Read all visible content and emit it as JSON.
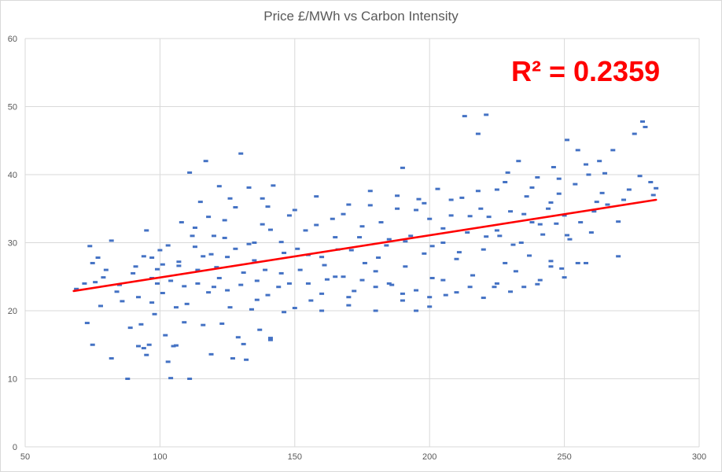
{
  "chart_data": {
    "type": "scatter",
    "title": "Price £/MWh vs Carbon Intensity",
    "xlabel": "",
    "ylabel": "",
    "xlim": [
      50,
      300
    ],
    "ylim": [
      0,
      60
    ],
    "x_ticks": [
      50,
      100,
      150,
      200,
      250,
      300
    ],
    "y_ticks": [
      0,
      10,
      20,
      30,
      40,
      50,
      60
    ],
    "grid": true,
    "legend": "none",
    "marker_color": "#4472c4",
    "trendline": {
      "type": "linear",
      "color": "#ff0000",
      "x": [
        68,
        284
      ],
      "y": [
        22.9,
        36.3
      ],
      "annotation": "R² = 0.2359",
      "r_squared": 0.2359
    },
    "series": [
      {
        "name": "Price vs Carbon Intensity",
        "points": [
          [
            69,
            23.2
          ],
          [
            72,
            24.0
          ],
          [
            73,
            18.2
          ],
          [
            74,
            29.5
          ],
          [
            75,
            15.0
          ],
          [
            75,
            27.0
          ],
          [
            76,
            24.2
          ],
          [
            78,
            20.7
          ],
          [
            80,
            26.0
          ],
          [
            82,
            30.3
          ],
          [
            82,
            13.0
          ],
          [
            85,
            23.8
          ],
          [
            88,
            10.0
          ],
          [
            89,
            17.5
          ],
          [
            90,
            25.5
          ],
          [
            91,
            26.5
          ],
          [
            92,
            22.0
          ],
          [
            93,
            18.0
          ],
          [
            94,
            14.5
          ],
          [
            94,
            28.0
          ],
          [
            95,
            31.8
          ],
          [
            95,
            13.5
          ],
          [
            96,
            15.0
          ],
          [
            97,
            21.2
          ],
          [
            97,
            27.8
          ],
          [
            98,
            19.5
          ],
          [
            99,
            24.0
          ],
          [
            100,
            28.9
          ],
          [
            101,
            22.6
          ],
          [
            102,
            16.4
          ],
          [
            103,
            12.5
          ],
          [
            103,
            29.6
          ],
          [
            104,
            10.1
          ],
          [
            105,
            14.8
          ],
          [
            106,
            20.5
          ],
          [
            107,
            26.6
          ],
          [
            108,
            33.0
          ],
          [
            109,
            18.3
          ],
          [
            110,
            21.0
          ],
          [
            111,
            40.3
          ],
          [
            111,
            10.0
          ],
          [
            113,
            32.2
          ],
          [
            114,
            24.0
          ],
          [
            115,
            36.0
          ],
          [
            116,
            28.0
          ],
          [
            117,
            42.0
          ],
          [
            118,
            22.7
          ],
          [
            119,
            13.6
          ],
          [
            120,
            31.0
          ],
          [
            121,
            26.4
          ],
          [
            122,
            38.3
          ],
          [
            123,
            18.1
          ],
          [
            124,
            33.3
          ],
          [
            125,
            23.0
          ],
          [
            126,
            36.5
          ],
          [
            127,
            13.0
          ],
          [
            128,
            29.1
          ],
          [
            129,
            16.1
          ],
          [
            130,
            43.1
          ],
          [
            131,
            25.6
          ],
          [
            132,
            12.8
          ],
          [
            133,
            38.1
          ],
          [
            134,
            20.2
          ],
          [
            135,
            30.0
          ],
          [
            136,
            24.4
          ],
          [
            137,
            17.2
          ],
          [
            138,
            32.7
          ],
          [
            139,
            26.0
          ],
          [
            140,
            35.3
          ],
          [
            141,
            15.7
          ],
          [
            142,
            38.4
          ],
          [
            144,
            23.5
          ],
          [
            146,
            28.5
          ],
          [
            148,
            24.0
          ],
          [
            150,
            34.8
          ],
          [
            152,
            26.0
          ],
          [
            154,
            31.8
          ],
          [
            156,
            21.5
          ],
          [
            158,
            36.8
          ],
          [
            160,
            27.9
          ],
          [
            162,
            24.6
          ],
          [
            164,
            33.5
          ],
          [
            166,
            29.0
          ],
          [
            168,
            25.0
          ],
          [
            170,
            35.6
          ],
          [
            172,
            22.9
          ],
          [
            174,
            30.8
          ],
          [
            176,
            27.0
          ],
          [
            178,
            37.6
          ],
          [
            180,
            25.8
          ],
          [
            182,
            33.0
          ],
          [
            184,
            29.6
          ],
          [
            186,
            23.8
          ],
          [
            188,
            35.0
          ],
          [
            190,
            41.0
          ],
          [
            191,
            26.5
          ],
          [
            193,
            31.0
          ],
          [
            195,
            20.0
          ],
          [
            196,
            36.4
          ],
          [
            198,
            28.4
          ],
          [
            200,
            33.5
          ],
          [
            201,
            24.8
          ],
          [
            203,
            37.9
          ],
          [
            205,
            30.0
          ],
          [
            206,
            22.3
          ],
          [
            208,
            34.0
          ],
          [
            210,
            27.6
          ],
          [
            212,
            36.6
          ],
          [
            213,
            48.6
          ],
          [
            214,
            31.5
          ],
          [
            216,
            25.2
          ],
          [
            218,
            46.0
          ],
          [
            219,
            35.0
          ],
          [
            220,
            29.0
          ],
          [
            221,
            48.8
          ],
          [
            222,
            33.8
          ],
          [
            224,
            23.5
          ],
          [
            225,
            37.8
          ],
          [
            226,
            31.0
          ],
          [
            228,
            27.0
          ],
          [
            229,
            40.3
          ],
          [
            230,
            34.6
          ],
          [
            232,
            25.8
          ],
          [
            233,
            42.0
          ],
          [
            234,
            30.0
          ],
          [
            236,
            36.8
          ],
          [
            237,
            28.1
          ],
          [
            238,
            33.0
          ],
          [
            240,
            39.6
          ],
          [
            241,
            24.5
          ],
          [
            242,
            31.2
          ],
          [
            244,
            35.0
          ],
          [
            245,
            27.3
          ],
          [
            246,
            41.1
          ],
          [
            247,
            32.8
          ],
          [
            248,
            37.2
          ],
          [
            249,
            26.2
          ],
          [
            250,
            34.0
          ],
          [
            251,
            45.1
          ],
          [
            252,
            30.5
          ],
          [
            254,
            38.6
          ],
          [
            255,
            43.6
          ],
          [
            256,
            33.0
          ],
          [
            258,
            27.0
          ],
          [
            259,
            40.0
          ],
          [
            260,
            31.5
          ],
          [
            262,
            36.0
          ],
          [
            263,
            42.0
          ],
          [
            264,
            37.3
          ],
          [
            266,
            35.6
          ],
          [
            268,
            43.6
          ],
          [
            270,
            28.0
          ],
          [
            272,
            36.3
          ],
          [
            274,
            37.8
          ],
          [
            276,
            46.0
          ],
          [
            278,
            39.8
          ],
          [
            279,
            47.8
          ],
          [
            280,
            47.0
          ],
          [
            282,
            38.9
          ],
          [
            283,
            37.0
          ],
          [
            284,
            38.0
          ],
          [
            120,
            23.5
          ],
          [
            130,
            23.8
          ],
          [
            145,
            25.5
          ],
          [
            155,
            24.0
          ],
          [
            165,
            25.0
          ],
          [
            175,
            24.5
          ],
          [
            185,
            24.0
          ],
          [
            195,
            23.0
          ],
          [
            205,
            24.5
          ],
          [
            215,
            23.5
          ],
          [
            225,
            24.0
          ],
          [
            235,
            23.5
          ],
          [
            245,
            26.5
          ],
          [
            255,
            27.0
          ],
          [
            160,
            22.5
          ],
          [
            170,
            22.0
          ],
          [
            180,
            23.5
          ],
          [
            190,
            22.5
          ],
          [
            200,
            22.0
          ],
          [
            135,
            27.4
          ],
          [
            145,
            30.1
          ],
          [
            155,
            28.2
          ],
          [
            165,
            30.8
          ],
          [
            175,
            32.4
          ],
          [
            185,
            30.5
          ],
          [
            195,
            34.8
          ],
          [
            205,
            32.1
          ],
          [
            215,
            33.9
          ],
          [
            225,
            31.8
          ],
          [
            235,
            34.2
          ],
          [
            245,
            35.9
          ],
          [
            112,
            31.0
          ],
          [
            118,
            33.8
          ],
          [
            124,
            30.7
          ],
          [
            128,
            35.2
          ],
          [
            138,
            36.5
          ],
          [
            148,
            34.0
          ],
          [
            158,
            32.6
          ],
          [
            168,
            34.2
          ],
          [
            178,
            35.5
          ],
          [
            188,
            36.9
          ],
          [
            198,
            35.8
          ],
          [
            208,
            36.3
          ],
          [
            218,
            37.6
          ],
          [
            228,
            38.9
          ],
          [
            238,
            38.1
          ],
          [
            248,
            39.4
          ],
          [
            258,
            41.5
          ],
          [
            265,
            40.2
          ],
          [
            97,
            24.8
          ],
          [
            101,
            26.8
          ],
          [
            107,
            27.2
          ],
          [
            113,
            29.4
          ],
          [
            119,
            28.3
          ],
          [
            125,
            27.9
          ],
          [
            133,
            29.8
          ],
          [
            141,
            31.9
          ],
          [
            151,
            29.1
          ],
          [
            161,
            26.7
          ],
          [
            171,
            28.9
          ],
          [
            181,
            27.8
          ],
          [
            191,
            30.2
          ],
          [
            201,
            29.5
          ],
          [
            211,
            28.6
          ],
          [
            221,
            30.9
          ],
          [
            231,
            29.7
          ],
          [
            241,
            32.7
          ],
          [
            251,
            31.1
          ],
          [
            261,
            34.6
          ],
          [
            270,
            33.1
          ],
          [
            140,
            22.3
          ],
          [
            150,
            20.4
          ],
          [
            160,
            20.0
          ],
          [
            170,
            20.8
          ],
          [
            180,
            20.0
          ],
          [
            190,
            21.5
          ],
          [
            200,
            20.6
          ],
          [
            210,
            22.7
          ],
          [
            220,
            21.9
          ],
          [
            230,
            22.8
          ],
          [
            240,
            23.9
          ],
          [
            250,
            24.9
          ],
          [
            126,
            20.5
          ],
          [
            136,
            21.6
          ],
          [
            146,
            19.8
          ],
          [
            116,
            17.9
          ],
          [
            131,
            15.1
          ],
          [
            106,
            14.9
          ],
          [
            141,
            16.0
          ],
          [
            92,
            14.8
          ],
          [
            86,
            21.4
          ],
          [
            79,
            24.9
          ],
          [
            77,
            27.8
          ],
          [
            84,
            22.8
          ],
          [
            99,
            26.1
          ],
          [
            104,
            24.4
          ],
          [
            109,
            23.6
          ],
          [
            114,
            26.0
          ],
          [
            122,
            24.8
          ]
        ]
      }
    ]
  }
}
